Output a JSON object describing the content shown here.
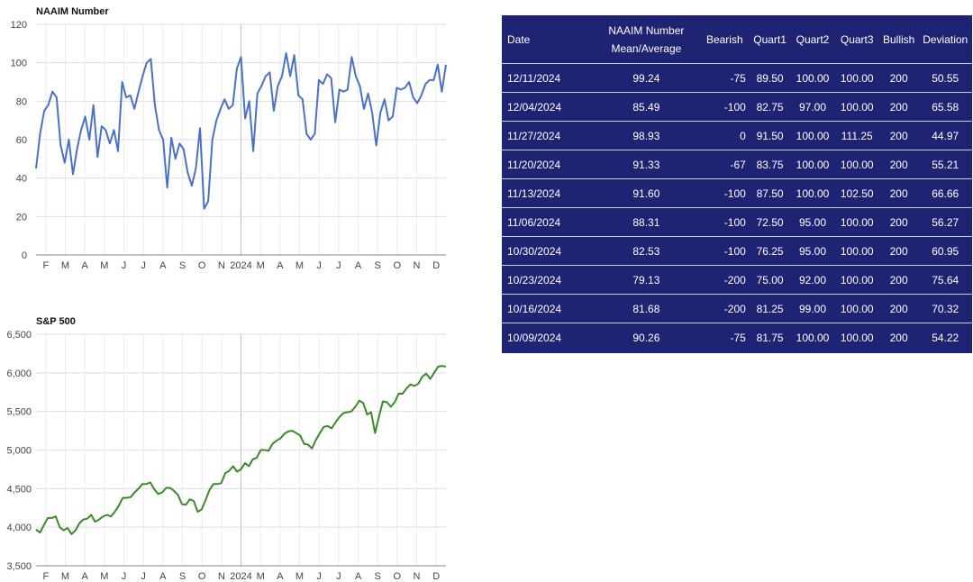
{
  "chart_data": [
    {
      "type": "line",
      "title": "NAAIM Number",
      "color": "#4a72c4",
      "x_ticks": [
        "F",
        "M",
        "A",
        "M",
        "J",
        "J",
        "A",
        "S",
        "O",
        "N",
        "2024",
        "M",
        "A",
        "M",
        "J",
        "J",
        "A",
        "S",
        "O",
        "N",
        "D"
      ],
      "yticks": [
        "0",
        "20",
        "40",
        "60",
        "80",
        "100",
        "120"
      ],
      "ylim": [
        0,
        120
      ],
      "grid": true,
      "series": [
        {
          "values": [
            45,
            63,
            75,
            78,
            85,
            82,
            57,
            48,
            60,
            42,
            55,
            65,
            72,
            60,
            78,
            51,
            67,
            65,
            58,
            65,
            54,
            90,
            82,
            83,
            76,
            85,
            93,
            100,
            102,
            78,
            65,
            60,
            35,
            61,
            50,
            58,
            55,
            43,
            36,
            45,
            66,
            24,
            28,
            60,
            70,
            76,
            81,
            76,
            78,
            97,
            103,
            71,
            80,
            54,
            84,
            88,
            93,
            95,
            75,
            88,
            93,
            105,
            93,
            104,
            83,
            81,
            63,
            60,
            63,
            91,
            89,
            94,
            92,
            69,
            86,
            85,
            86,
            103,
            93,
            88,
            76,
            84,
            74,
            57,
            74,
            81,
            70,
            72,
            87,
            86,
            87,
            90,
            82,
            79,
            83,
            89,
            91,
            91,
            99,
            85,
            99
          ]
        }
      ]
    },
    {
      "type": "line",
      "title": "S&P 500",
      "color": "#3a8a2a",
      "x_ticks": [
        "F",
        "M",
        "A",
        "M",
        "J",
        "J",
        "A",
        "S",
        "O",
        "N",
        "2024",
        "M",
        "A",
        "M",
        "J",
        "J",
        "A",
        "S",
        "O",
        "N",
        "D"
      ],
      "yticks": [
        "3,500",
        "4,000",
        "4,500",
        "5,000",
        "5,500",
        "6,000",
        "6,500"
      ],
      "ylim": [
        3500,
        6500
      ],
      "grid": true,
      "series": [
        {
          "values": [
            3970,
            3930,
            4030,
            4120,
            4120,
            4140,
            4000,
            3960,
            3990,
            3910,
            3960,
            4050,
            4100,
            4110,
            4160,
            4070,
            4100,
            4140,
            4160,
            4140,
            4200,
            4280,
            4380,
            4380,
            4390,
            4450,
            4500,
            4560,
            4560,
            4580,
            4490,
            4430,
            4450,
            4510,
            4510,
            4470,
            4420,
            4300,
            4290,
            4360,
            4340,
            4200,
            4230,
            4350,
            4480,
            4560,
            4560,
            4570,
            4700,
            4730,
            4790,
            4720,
            4750,
            4830,
            4790,
            4880,
            4900,
            5000,
            5000,
            4990,
            5080,
            5120,
            5150,
            5210,
            5240,
            5250,
            5220,
            5190,
            5080,
            5070,
            5020,
            5130,
            5220,
            5300,
            5310,
            5280,
            5360,
            5430,
            5480,
            5490,
            5500,
            5560,
            5640,
            5610,
            5460,
            5490,
            5220,
            5430,
            5630,
            5620,
            5560,
            5620,
            5730,
            5730,
            5800,
            5850,
            5830,
            5860,
            5950,
            5990,
            5920,
            6000,
            6080,
            6090,
            6080
          ]
        }
      ]
    }
  ],
  "table": {
    "headers": [
      "Date",
      "NAAIM Number Mean/Average",
      "Bearish",
      "Quart1",
      "Quart2",
      "Quart3",
      "Bullish",
      "Deviation"
    ],
    "rows": [
      [
        "12/11/2024",
        "99.24",
        "-75",
        "89.50",
        "100.00",
        "100.00",
        "200",
        "50.55"
      ],
      [
        "12/04/2024",
        "85.49",
        "-100",
        "82.75",
        "97.00",
        "100.00",
        "200",
        "65.58"
      ],
      [
        "11/27/2024",
        "98.93",
        "0",
        "91.50",
        "100.00",
        "111.25",
        "200",
        "44.97"
      ],
      [
        "11/20/2024",
        "91.33",
        "-67",
        "83.75",
        "100.00",
        "100.00",
        "200",
        "55.21"
      ],
      [
        "11/13/2024",
        "91.60",
        "-100",
        "87.50",
        "100.00",
        "102.50",
        "200",
        "66.66"
      ],
      [
        "11/06/2024",
        "88.31",
        "-100",
        "72.50",
        "95.00",
        "100.00",
        "200",
        "56.27"
      ],
      [
        "10/30/2024",
        "82.53",
        "-100",
        "76.25",
        "95.00",
        "100.00",
        "200",
        "60.95"
      ],
      [
        "10/23/2024",
        "79.13",
        "-200",
        "75.00",
        "92.00",
        "100.00",
        "200",
        "75.64"
      ],
      [
        "10/16/2024",
        "81.68",
        "-200",
        "81.25",
        "99.00",
        "100.00",
        "200",
        "70.32"
      ],
      [
        "10/09/2024",
        "90.26",
        "-75",
        "81.75",
        "100.00",
        "100.00",
        "200",
        "54.22"
      ]
    ]
  }
}
